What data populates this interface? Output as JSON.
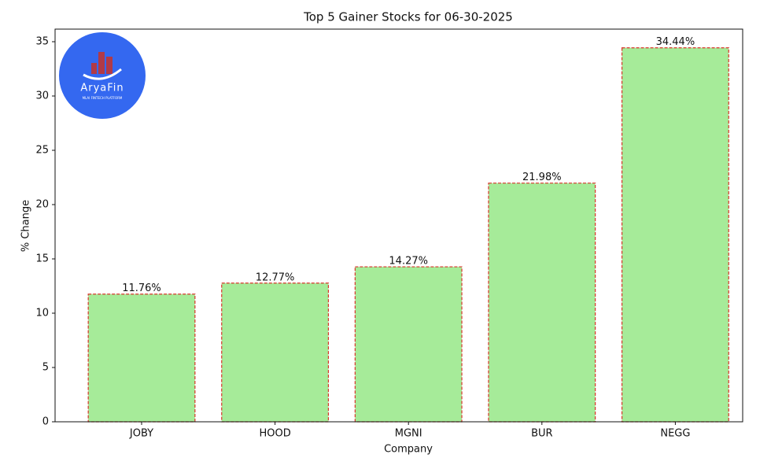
{
  "chart_data": {
    "type": "bar",
    "title": "Top 5 Gainer Stocks for 06-30-2025",
    "x_label": "Company",
    "y_label": "% Change",
    "categories": [
      "JOBY",
      "HOOD",
      "MGNI",
      "BUR",
      "NEGG"
    ],
    "values": [
      11.76,
      12.77,
      14.27,
      21.98,
      34.44
    ],
    "value_labels": [
      "11.76%",
      "12.77%",
      "14.27%",
      "21.98%",
      "34.44%"
    ],
    "color": "#a6eb99",
    "edge_color": "#d9352b",
    "ylim": [
      0,
      36.16
    ],
    "yticks": [
      0,
      5,
      10,
      15,
      20,
      25,
      30,
      35
    ],
    "grid": false
  },
  "logo": {
    "name": "AryaFin",
    "tagline": "MLAI FINTECH PLATFORM"
  }
}
